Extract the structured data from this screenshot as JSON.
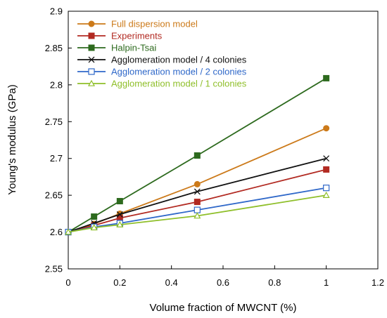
{
  "chart_data": {
    "type": "line",
    "title": "",
    "xlabel": "Volume fraction of MWCNT (%)",
    "ylabel": "Young's modulus (GPa)",
    "xlim": [
      0,
      1.2
    ],
    "ylim": [
      2.55,
      2.9
    ],
    "xticks": [
      "0",
      "0.2",
      "0.4",
      "0.6",
      "0.8",
      "1",
      "1.2"
    ],
    "yticks": [
      "2.55",
      "2.6",
      "2.65",
      "2.7",
      "2.75",
      "2.8",
      "2.85",
      "2.9"
    ],
    "grid": false,
    "legend_position": "top-left",
    "x": [
      0,
      0.1,
      0.2,
      0.5,
      1
    ],
    "series": [
      {
        "name": "Full dispersion model",
        "color": "#cc7a1a",
        "marker": "circle",
        "values": [
          2.6,
          2.611,
          2.625,
          2.665,
          2.741
        ]
      },
      {
        "name": "Experiments",
        "color": "#b22a22",
        "marker": "square",
        "values": [
          2.6,
          2.609,
          2.619,
          2.641,
          2.685
        ]
      },
      {
        "name": "Halpin-Tsai",
        "color": "#2d6a1e",
        "marker": "square",
        "values": [
          2.6,
          2.621,
          2.642,
          2.704,
          2.809
        ]
      },
      {
        "name": "Agglomeration model / 4 colonies",
        "color": "#111111",
        "marker": "x",
        "values": [
          2.6,
          2.612,
          2.624,
          2.655,
          2.7
        ]
      },
      {
        "name": "Agglomeration model / 2 colonies",
        "color": "#2f68c9",
        "marker": "open-square",
        "values": [
          2.6,
          2.607,
          2.612,
          2.63,
          2.66
        ]
      },
      {
        "name": "Agglomeration model / 1 colonies",
        "color": "#8fbf2a",
        "marker": "triangle",
        "values": [
          2.6,
          2.606,
          2.61,
          2.622,
          2.65
        ]
      }
    ]
  }
}
